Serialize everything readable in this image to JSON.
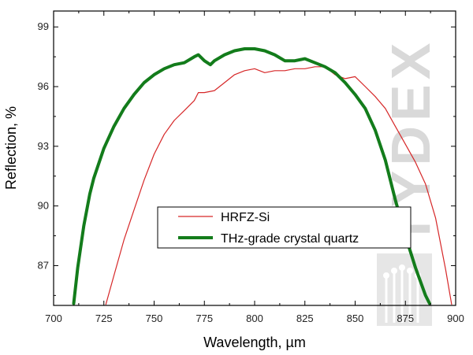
{
  "chart_data": {
    "type": "line",
    "title": "",
    "xlabel": "Wavelength, µm",
    "ylabel": "Reflection, %",
    "xlim": [
      700,
      900
    ],
    "ylim": [
      85,
      99.8
    ],
    "xticks": [
      700,
      725,
      750,
      775,
      800,
      825,
      850,
      875,
      900
    ],
    "yticks": [
      87,
      90,
      93,
      96,
      99
    ],
    "grid": false,
    "legend_position": "center-bottom",
    "series": [
      {
        "name": "HRFZ-Si",
        "color": "#d62728",
        "line_width": "thin",
        "x": [
          726,
          730,
          735,
          740,
          745,
          750,
          755,
          760,
          765,
          770,
          772,
          775,
          780,
          785,
          790,
          795,
          800,
          805,
          810,
          815,
          820,
          825,
          830,
          835,
          840,
          845,
          850,
          855,
          860,
          865,
          870,
          875,
          880,
          885,
          890,
          895,
          898
        ],
        "y": [
          85.05,
          86.5,
          88.3,
          89.8,
          91.3,
          92.6,
          93.6,
          94.3,
          94.8,
          95.3,
          95.7,
          95.7,
          95.8,
          96.2,
          96.6,
          96.8,
          96.9,
          96.7,
          96.8,
          96.8,
          96.9,
          96.9,
          97.0,
          97.0,
          96.6,
          96.4,
          96.5,
          96.0,
          95.5,
          94.9,
          94.0,
          93.1,
          92.2,
          91.1,
          89.4,
          86.8,
          85.05
        ]
      },
      {
        "name": "THz-grade crystal quartz",
        "color": "#137c1b",
        "line_width": "thick",
        "x": [
          710,
          712,
          715,
          718,
          720,
          725,
          730,
          735,
          740,
          745,
          750,
          755,
          760,
          765,
          770,
          772,
          775,
          778,
          780,
          785,
          790,
          795,
          800,
          805,
          810,
          815,
          820,
          825,
          830,
          835,
          840,
          845,
          850,
          855,
          860,
          865,
          870,
          875,
          880,
          885,
          887
        ],
        "y": [
          85.1,
          86.9,
          89.0,
          90.6,
          91.4,
          92.9,
          94.0,
          94.9,
          95.6,
          96.2,
          96.6,
          96.9,
          97.1,
          97.2,
          97.5,
          97.6,
          97.3,
          97.1,
          97.3,
          97.6,
          97.8,
          97.9,
          97.9,
          97.8,
          97.6,
          97.3,
          97.3,
          97.4,
          97.2,
          97.0,
          96.7,
          96.2,
          95.6,
          94.9,
          93.8,
          92.3,
          90.3,
          88.5,
          86.9,
          85.5,
          85.1
        ]
      }
    ]
  },
  "watermark": {
    "text": "TYDEX",
    "color": "#d9d9d9"
  }
}
